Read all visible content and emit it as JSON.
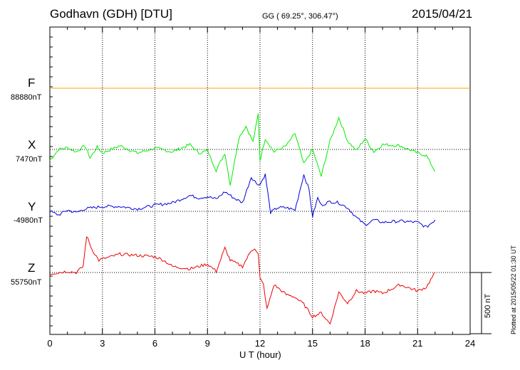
{
  "header": {
    "station": "Godhavn (GDH)  [DTU]",
    "coords": "GG ( 69.25°, 306.47°)",
    "date": "2015/04/21"
  },
  "side_note": "Plotted at 2015/05/22 01:30 UT",
  "scale_label": "500 nT",
  "colors": {
    "F": "#ffa500",
    "X": "#00ee00",
    "Y": "#0000dd",
    "Z": "#ee0000"
  },
  "chart_data": {
    "type": "line",
    "xlabel": "U T (hour)",
    "xlim": [
      0,
      24
    ],
    "xticks": [
      "0",
      "3",
      "6",
      "9",
      "12",
      "15",
      "18",
      "21",
      "24"
    ],
    "grid": true,
    "scale_bar_nT": 500,
    "series": [
      {
        "name": "F",
        "baseline_label": "88880nT",
        "baseline": 88880,
        "x": [
          0,
          24
        ],
        "values": [
          88880,
          88880
        ]
      },
      {
        "name": "X",
        "baseline_label": "7470nT",
        "baseline": 7470,
        "x": [
          0,
          0.5,
          1,
          1.5,
          2,
          2.3,
          2.7,
          3,
          4,
          5,
          6,
          7,
          8,
          8.5,
          9,
          9.5,
          10,
          10.3,
          10.8,
          11.2,
          11.6,
          11.9,
          12,
          12.3,
          12.8,
          13.5,
          14,
          14.5,
          15,
          15.5,
          16,
          16.5,
          17,
          17.5,
          18,
          18.5,
          19,
          20,
          21,
          21.5,
          22
        ],
        "values": [
          7380,
          7470,
          7485,
          7450,
          7500,
          7400,
          7490,
          7440,
          7500,
          7440,
          7480,
          7450,
          7510,
          7440,
          7460,
          7300,
          7440,
          7180,
          7570,
          7660,
          7530,
          7760,
          7380,
          7560,
          7450,
          7500,
          7600,
          7350,
          7470,
          7250,
          7540,
          7730,
          7540,
          7460,
          7560,
          7450,
          7510,
          7500,
          7440,
          7420,
          7290
        ]
      },
      {
        "name": "Y",
        "baseline_label": "-4980nT",
        "baseline": -4980,
        "x": [
          0,
          0.5,
          1,
          1.5,
          2,
          2.5,
          3,
          4,
          5,
          6,
          7,
          8,
          8.5,
          9,
          9.5,
          10,
          10.5,
          11,
          11.5,
          11.8,
          12,
          12.3,
          12.6,
          13,
          13.5,
          14,
          14.5,
          14.8,
          15,
          15.3,
          15.5,
          16,
          16.5,
          17,
          17.5,
          18,
          18.5,
          19,
          20,
          21,
          21.5,
          22
        ],
        "values": [
          -4980,
          -5010,
          -4970,
          -4990,
          -4960,
          -4950,
          -4940,
          -4940,
          -4960,
          -4930,
          -4910,
          -4850,
          -4870,
          -4860,
          -4880,
          -4820,
          -4870,
          -4910,
          -4700,
          -4750,
          -4760,
          -4680,
          -4990,
          -4950,
          -4950,
          -4970,
          -4680,
          -4800,
          -5020,
          -4870,
          -4930,
          -4900,
          -4910,
          -4950,
          -5030,
          -5090,
          -5050,
          -5070,
          -5060,
          -5070,
          -5110,
          -5050
        ]
      },
      {
        "name": "Z",
        "baseline_label": "55750nT",
        "baseline": 55750,
        "x": [
          0,
          0.5,
          1,
          1.5,
          1.9,
          2.1,
          2.4,
          2.8,
          3,
          4,
          5,
          6,
          6.5,
          7,
          8,
          9,
          9.5,
          10,
          10.3,
          11,
          11.5,
          11.7,
          11.9,
          12,
          12.2,
          12.4,
          12.8,
          13.5,
          14,
          14.5,
          15,
          15.5,
          16,
          16.5,
          17,
          17.5,
          18,
          18.5,
          19,
          20,
          21,
          21.5,
          22
        ],
        "values": [
          55740,
          55750,
          55760,
          55750,
          55800,
          56050,
          55940,
          55850,
          55860,
          55900,
          55890,
          55880,
          55850,
          55800,
          55780,
          55820,
          55760,
          55950,
          55850,
          55800,
          55930,
          55950,
          55900,
          55700,
          55650,
          55450,
          55650,
          55570,
          55550,
          55490,
          55390,
          55420,
          55330,
          55590,
          55500,
          55600,
          55580,
          55600,
          55580,
          55650,
          55600,
          55630,
          55750
        ]
      }
    ]
  }
}
